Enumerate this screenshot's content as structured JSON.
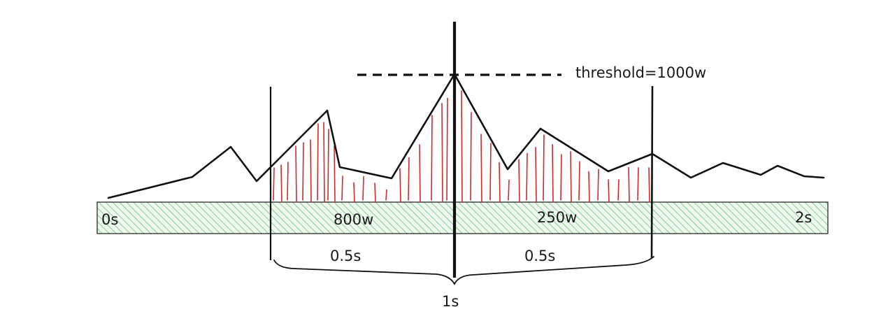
{
  "labels": {
    "threshold": "threshold=1000w",
    "start": "0s",
    "end": "2s",
    "left_power": "800w",
    "right_power": "250w",
    "left_span": "0.5s",
    "right_span": "0.5s",
    "total_span": "1s"
  },
  "colors": {
    "ink": "#111111",
    "hatch": "#62c36b",
    "strip_fill": "#eaf6ea",
    "area_lines": "#d12b2b"
  }
}
